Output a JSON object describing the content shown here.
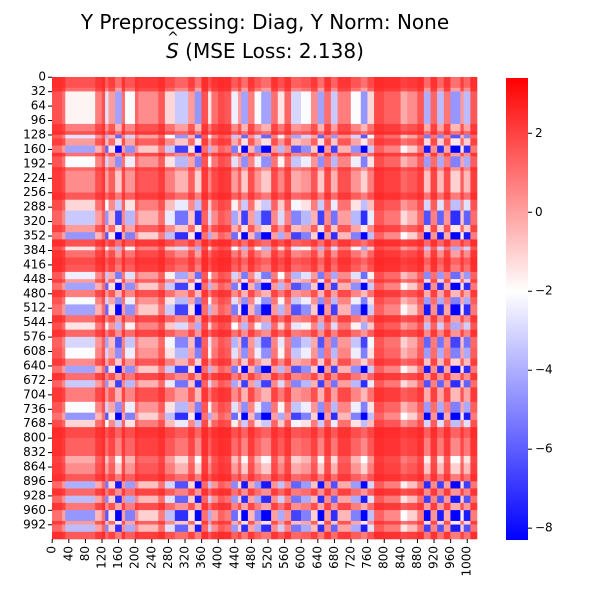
{
  "title": {
    "line1": "Y Preprocessing: Diag, Y Norm: None",
    "line2_symbol": "S",
    "line2_text": " (MSE Loss: 2.138)"
  },
  "colors": {
    "low": "#0000ff",
    "mid": "#ffffff",
    "high": "#ff0000",
    "background": "#ffffff"
  },
  "chart_data": {
    "type": "heatmap",
    "size": [
      1024,
      1024
    ],
    "xlabel": "",
    "ylabel": "",
    "x_ticks": [
      0,
      40,
      80,
      120,
      160,
      200,
      240,
      280,
      320,
      360,
      400,
      440,
      480,
      520,
      560,
      600,
      640,
      680,
      720,
      760,
      800,
      840,
      880,
      920,
      960,
      1000
    ],
    "y_ticks": [
      0,
      32,
      64,
      96,
      128,
      160,
      192,
      224,
      256,
      288,
      320,
      352,
      384,
      416,
      448,
      480,
      512,
      544,
      576,
      608,
      640,
      672,
      704,
      736,
      768,
      800,
      832,
      864,
      896,
      928,
      960,
      992
    ],
    "colorbar": {
      "vmin": -8.3,
      "vmax": 3.4,
      "ticks": [
        2,
        0,
        -2,
        -4,
        -6,
        -8
      ]
    },
    "block_pattern": {
      "description": "symmetric block structure; value of cell (i,j) approximated by band level of row i and column j",
      "band_edges": [
        0,
        24,
        32,
        104,
        120,
        128,
        136,
        152,
        168,
        176,
        200,
        208,
        256,
        272,
        296,
        328,
        344,
        360,
        376,
        384,
        400,
        416,
        432,
        448,
        456,
        472,
        488,
        504,
        528,
        544,
        560,
        576,
        600,
        624,
        640,
        656,
        672,
        688,
        720,
        744,
        760,
        776,
        800,
        840,
        856,
        880,
        896,
        912,
        928,
        944,
        960,
        984,
        992,
        1008,
        1024
      ],
      "band_level": [
        0.2,
        0.6,
        2.4,
        0.8,
        0.2,
        3.0,
        1.2,
        4.0,
        0.6,
        2.6,
        0.5,
        1.0,
        0.3,
        2.0,
        3.4,
        1.2,
        4.2,
        0.2,
        2.2,
        0.6,
        0.1,
        0.3,
        2.8,
        1.2,
        4.0,
        0.8,
        2.6,
        4.0,
        0.6,
        2.2,
        0.5,
        3.2,
        2.6,
        1.0,
        4.0,
        0.6,
        3.4,
        0.8,
        2.6,
        4.2,
        2.0,
        0.1,
        0.4,
        1.4,
        1.0,
        0.3,
        3.8,
        0.5,
        3.6,
        0.7,
        4.2,
        1.2,
        3.6,
        0.3
      ]
    }
  }
}
